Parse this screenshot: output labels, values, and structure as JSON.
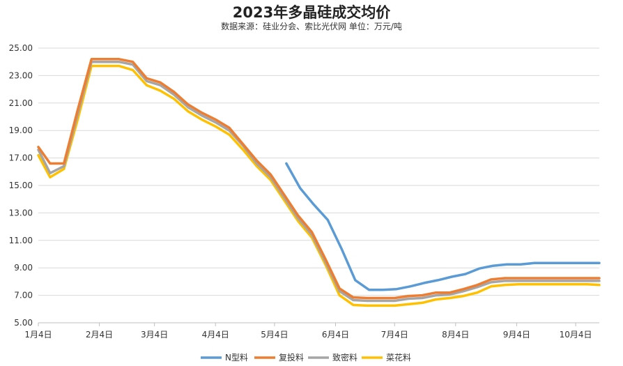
{
  "chart_data": {
    "type": "line",
    "title": "2023年多晶硅成交均价",
    "subtitle": "数据来源：硅业分会、索比光伏网    单位：万元/吨",
    "xlabel": "",
    "ylabel": "",
    "ylim": [
      5,
      25
    ],
    "yticks": [
      "5.00",
      "7.00",
      "9.00",
      "11.00",
      "13.00",
      "15.00",
      "17.00",
      "19.00",
      "21.00",
      "23.00",
      "25.00"
    ],
    "x_tick_labels": [
      "1月4日",
      "2月4日",
      "3月4日",
      "4月4日",
      "5月4日",
      "6月4日",
      "7月4日",
      "8月4日",
      "9月4日",
      "10月4日"
    ],
    "x_range_days": [
      0,
      285
    ],
    "grid": true,
    "legend_position": "bottom",
    "series": [
      {
        "name": "N型料",
        "color": "#5b9bd5",
        "x": [
          126,
          133,
          140,
          147,
          154,
          161,
          168,
          175,
          182,
          189,
          196,
          203,
          210,
          217,
          224,
          231,
          238,
          245,
          252,
          259,
          266,
          273,
          280,
          285
        ],
        "values": [
          16.6,
          14.8,
          13.6,
          12.5,
          10.4,
          8.1,
          7.4,
          7.4,
          7.45,
          7.65,
          7.9,
          8.1,
          8.35,
          8.55,
          8.95,
          9.15,
          9.25,
          9.25,
          9.35,
          9.35,
          9.35,
          9.35,
          9.35,
          9.35
        ]
      },
      {
        "name": "复投料",
        "color": "#ed7d31",
        "x": [
          0,
          6,
          13,
          20,
          27,
          34,
          41,
          48,
          55,
          62,
          69,
          76,
          83,
          90,
          97,
          104,
          111,
          118,
          125,
          132,
          139,
          146,
          153,
          160,
          167,
          174,
          181,
          188,
          195,
          202,
          209,
          216,
          223,
          230,
          237,
          244,
          251,
          258,
          265,
          272,
          279,
          285
        ],
        "values": [
          17.8,
          16.6,
          16.6,
          20.5,
          24.2,
          24.2,
          24.2,
          24.0,
          22.8,
          22.5,
          21.8,
          20.9,
          20.3,
          19.8,
          19.2,
          18.0,
          16.8,
          15.8,
          14.3,
          12.8,
          11.6,
          9.6,
          7.5,
          6.85,
          6.8,
          6.8,
          6.8,
          6.95,
          7.0,
          7.2,
          7.2,
          7.45,
          7.75,
          8.15,
          8.25,
          8.25,
          8.25,
          8.25,
          8.25,
          8.25,
          8.25,
          8.25
        ]
      },
      {
        "name": "致密料",
        "color": "#a5a5a5",
        "x": [
          0,
          6,
          13,
          20,
          27,
          34,
          41,
          48,
          55,
          62,
          69,
          76,
          83,
          90,
          97,
          104,
          111,
          118,
          125,
          132,
          139,
          146,
          153,
          160,
          167,
          174,
          181,
          188,
          195,
          202,
          209,
          216,
          223,
          230,
          237,
          244,
          251,
          258,
          265,
          272,
          279,
          285
        ],
        "values": [
          17.6,
          15.9,
          16.4,
          20.2,
          24.0,
          24.0,
          24.0,
          23.8,
          22.6,
          22.3,
          21.6,
          20.7,
          20.1,
          19.6,
          19.0,
          17.9,
          16.6,
          15.6,
          14.1,
          12.6,
          11.4,
          9.4,
          7.3,
          6.65,
          6.6,
          6.6,
          6.6,
          6.75,
          6.8,
          7.0,
          7.05,
          7.3,
          7.6,
          7.95,
          8.05,
          8.05,
          8.05,
          8.05,
          8.05,
          8.05,
          8.05,
          8.05
        ]
      },
      {
        "name": "菜花料",
        "color": "#ffc000",
        "x": [
          0,
          6,
          13,
          20,
          27,
          34,
          41,
          48,
          55,
          62,
          69,
          76,
          83,
          90,
          97,
          104,
          111,
          118,
          125,
          132,
          139,
          146,
          153,
          160,
          167,
          174,
          181,
          188,
          195,
          202,
          209,
          216,
          223,
          230,
          237,
          244,
          251,
          258,
          265,
          272,
          279,
          285
        ],
        "values": [
          17.2,
          15.6,
          16.2,
          19.8,
          23.7,
          23.7,
          23.7,
          23.4,
          22.3,
          21.9,
          21.3,
          20.4,
          19.8,
          19.3,
          18.7,
          17.6,
          16.4,
          15.4,
          13.9,
          12.4,
          11.2,
          9.2,
          7.0,
          6.3,
          6.25,
          6.25,
          6.25,
          6.35,
          6.45,
          6.7,
          6.8,
          6.95,
          7.2,
          7.65,
          7.75,
          7.8,
          7.8,
          7.8,
          7.8,
          7.8,
          7.8,
          7.75
        ]
      }
    ]
  }
}
